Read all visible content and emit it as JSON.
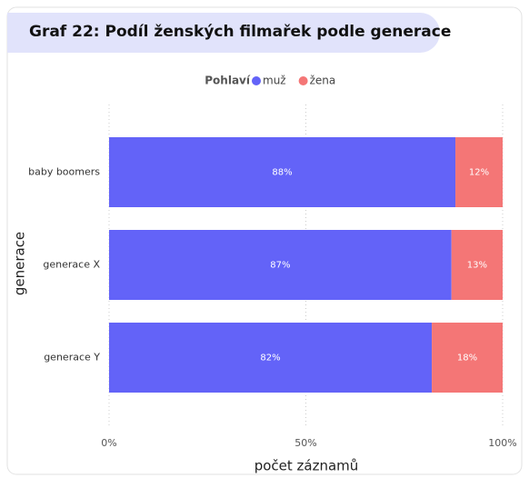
{
  "chart_data": {
    "type": "bar",
    "orientation": "horizontal",
    "stacked": true,
    "title": "Graf 22: Podíl ženských filmařek podle generace",
    "legend_title": "Pohlaví",
    "xlabel": "počet záznamů",
    "ylabel": "generace",
    "categories": [
      "baby boomers",
      "generace X",
      "generace Y"
    ],
    "series": [
      {
        "name": "muž",
        "color": "#6363f8",
        "values": [
          88,
          87,
          82
        ],
        "value_labels": [
          "88%",
          "87%",
          "82%"
        ]
      },
      {
        "name": "žena",
        "color": "#f47676",
        "values": [
          12,
          13,
          18
        ],
        "value_labels": [
          "12%",
          "13%",
          "18%"
        ]
      }
    ],
    "xlim": [
      0,
      100
    ],
    "xticks": [
      {
        "value": 0,
        "label": "0%"
      },
      {
        "value": 50,
        "label": "50%"
      },
      {
        "value": 100,
        "label": "100%"
      }
    ],
    "grid": true
  }
}
